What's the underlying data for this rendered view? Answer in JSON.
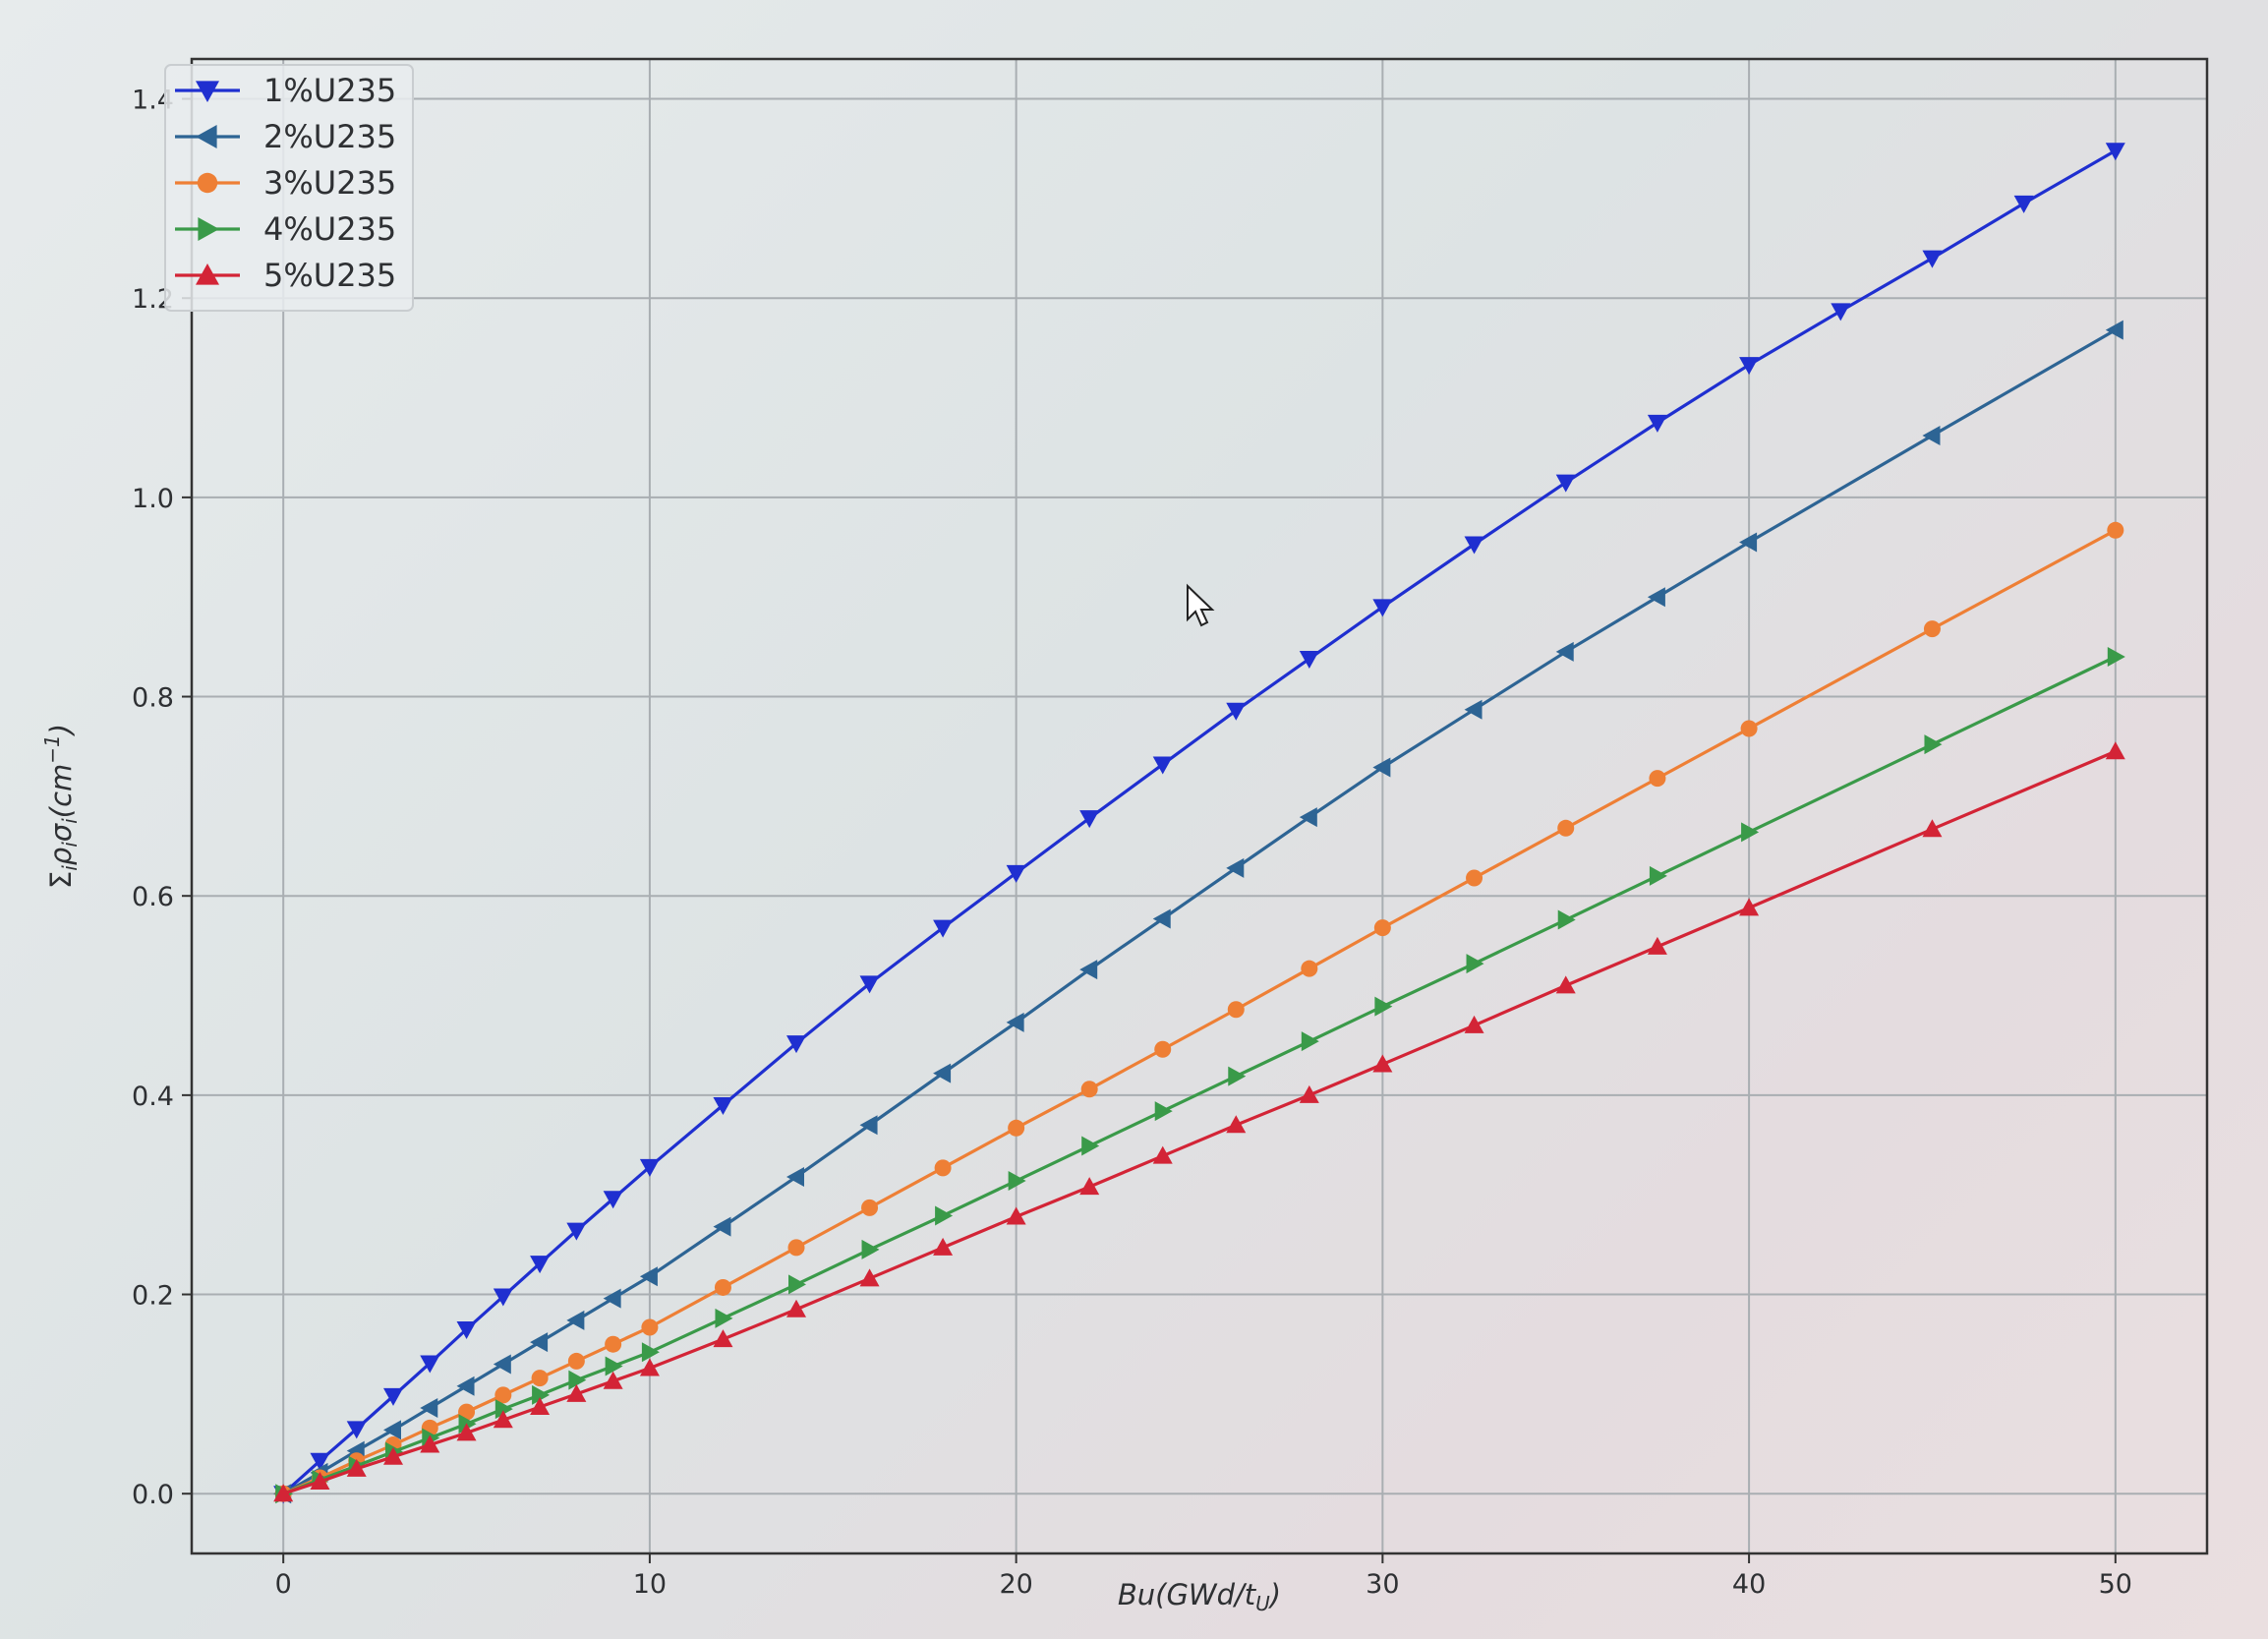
{
  "chart_data": {
    "type": "line",
    "xlabel": "Bu(GWd/t",
    "xlabel_sub": "U",
    "xlabel_close": ")",
    "ylabel": "Σ",
    "ylabel_parts": [
      "i",
      "ρ",
      "i",
      "σ",
      "i",
      "(cm",
      "−1",
      ")"
    ],
    "xlim": [
      -2.5,
      52.5
    ],
    "ylim": [
      -0.06,
      1.44
    ],
    "xticks": [
      0,
      10,
      20,
      30,
      40,
      50
    ],
    "yticks": [
      0.0,
      0.2,
      0.4,
      0.6,
      0.8,
      1.0,
      1.2,
      1.4
    ],
    "xtick_labels": [
      "0",
      "10",
      "20",
      "30",
      "40",
      "50"
    ],
    "ytick_labels": [
      "0.0",
      "0.2",
      "0.4",
      "0.6",
      "0.8",
      "1.0",
      "1.2",
      "1.4"
    ],
    "grid": true,
    "legend_position": "top-left",
    "series": [
      {
        "name": "1%U235",
        "color": "#1f2fd0",
        "marker": "triangle-down",
        "x": [
          0,
          1,
          2,
          3,
          4,
          5,
          6,
          7,
          8,
          9,
          10,
          12,
          14,
          16,
          18,
          20,
          22,
          24,
          26,
          28,
          30,
          32.5,
          35,
          37.5,
          40,
          42.5,
          45,
          47.5,
          50
        ],
        "y": [
          0.0,
          0.033,
          0.065,
          0.098,
          0.131,
          0.165,
          0.198,
          0.231,
          0.264,
          0.296,
          0.328,
          0.39,
          0.452,
          0.512,
          0.568,
          0.623,
          0.678,
          0.732,
          0.786,
          0.838,
          0.89,
          0.953,
          1.015,
          1.075,
          1.133,
          1.187,
          1.24,
          1.295,
          1.348
        ]
      },
      {
        "name": "2%U235",
        "color": "#2d6494",
        "marker": "triangle-left",
        "x": [
          0,
          1,
          2,
          3,
          4,
          5,
          6,
          7,
          8,
          9,
          10,
          12,
          14,
          16,
          18,
          20,
          22,
          24,
          26,
          28,
          30,
          32.5,
          35,
          37.5,
          40,
          45,
          50
        ],
        "y": [
          0.0,
          0.021,
          0.043,
          0.064,
          0.086,
          0.108,
          0.13,
          0.152,
          0.174,
          0.196,
          0.218,
          0.268,
          0.318,
          0.37,
          0.422,
          0.473,
          0.526,
          0.577,
          0.628,
          0.679,
          0.729,
          0.787,
          0.845,
          0.9,
          0.955,
          1.062,
          1.168
        ]
      },
      {
        "name": "3%U235",
        "color": "#ee7f35",
        "marker": "circle",
        "x": [
          0,
          1,
          2,
          3,
          4,
          5,
          6,
          7,
          8,
          9,
          10,
          12,
          14,
          16,
          18,
          20,
          22,
          24,
          26,
          28,
          30,
          32.5,
          35,
          37.5,
          40,
          45,
          50
        ],
        "y": [
          0.0,
          0.016,
          0.033,
          0.049,
          0.066,
          0.082,
          0.099,
          0.116,
          0.133,
          0.15,
          0.167,
          0.207,
          0.247,
          0.287,
          0.327,
          0.367,
          0.406,
          0.446,
          0.486,
          0.527,
          0.568,
          0.618,
          0.668,
          0.718,
          0.768,
          0.868,
          0.967
        ]
      },
      {
        "name": "4%U235",
        "color": "#3a9a49",
        "marker": "triangle-right",
        "x": [
          0,
          1,
          2,
          3,
          4,
          5,
          6,
          7,
          8,
          9,
          10,
          12,
          14,
          16,
          18,
          20,
          22,
          24,
          26,
          28,
          30,
          32.5,
          35,
          37.5,
          40,
          45,
          50
        ],
        "y": [
          0.0,
          0.014,
          0.028,
          0.042,
          0.056,
          0.07,
          0.085,
          0.099,
          0.114,
          0.128,
          0.142,
          0.176,
          0.21,
          0.245,
          0.279,
          0.314,
          0.349,
          0.384,
          0.419,
          0.454,
          0.489,
          0.532,
          0.576,
          0.62,
          0.664,
          0.752,
          0.84
        ]
      },
      {
        "name": "5%U235",
        "color": "#d32436",
        "marker": "triangle-up",
        "x": [
          0,
          1,
          2,
          3,
          4,
          5,
          6,
          7,
          8,
          9,
          10,
          12,
          14,
          16,
          18,
          20,
          22,
          24,
          26,
          28,
          30,
          32.5,
          35,
          37.5,
          40,
          45,
          50
        ],
        "y": [
          0.0,
          0.012,
          0.025,
          0.037,
          0.049,
          0.061,
          0.074,
          0.087,
          0.1,
          0.113,
          0.126,
          0.155,
          0.185,
          0.216,
          0.247,
          0.278,
          0.308,
          0.339,
          0.37,
          0.4,
          0.431,
          0.47,
          0.51,
          0.549,
          0.588,
          0.667,
          0.745
        ]
      }
    ]
  }
}
